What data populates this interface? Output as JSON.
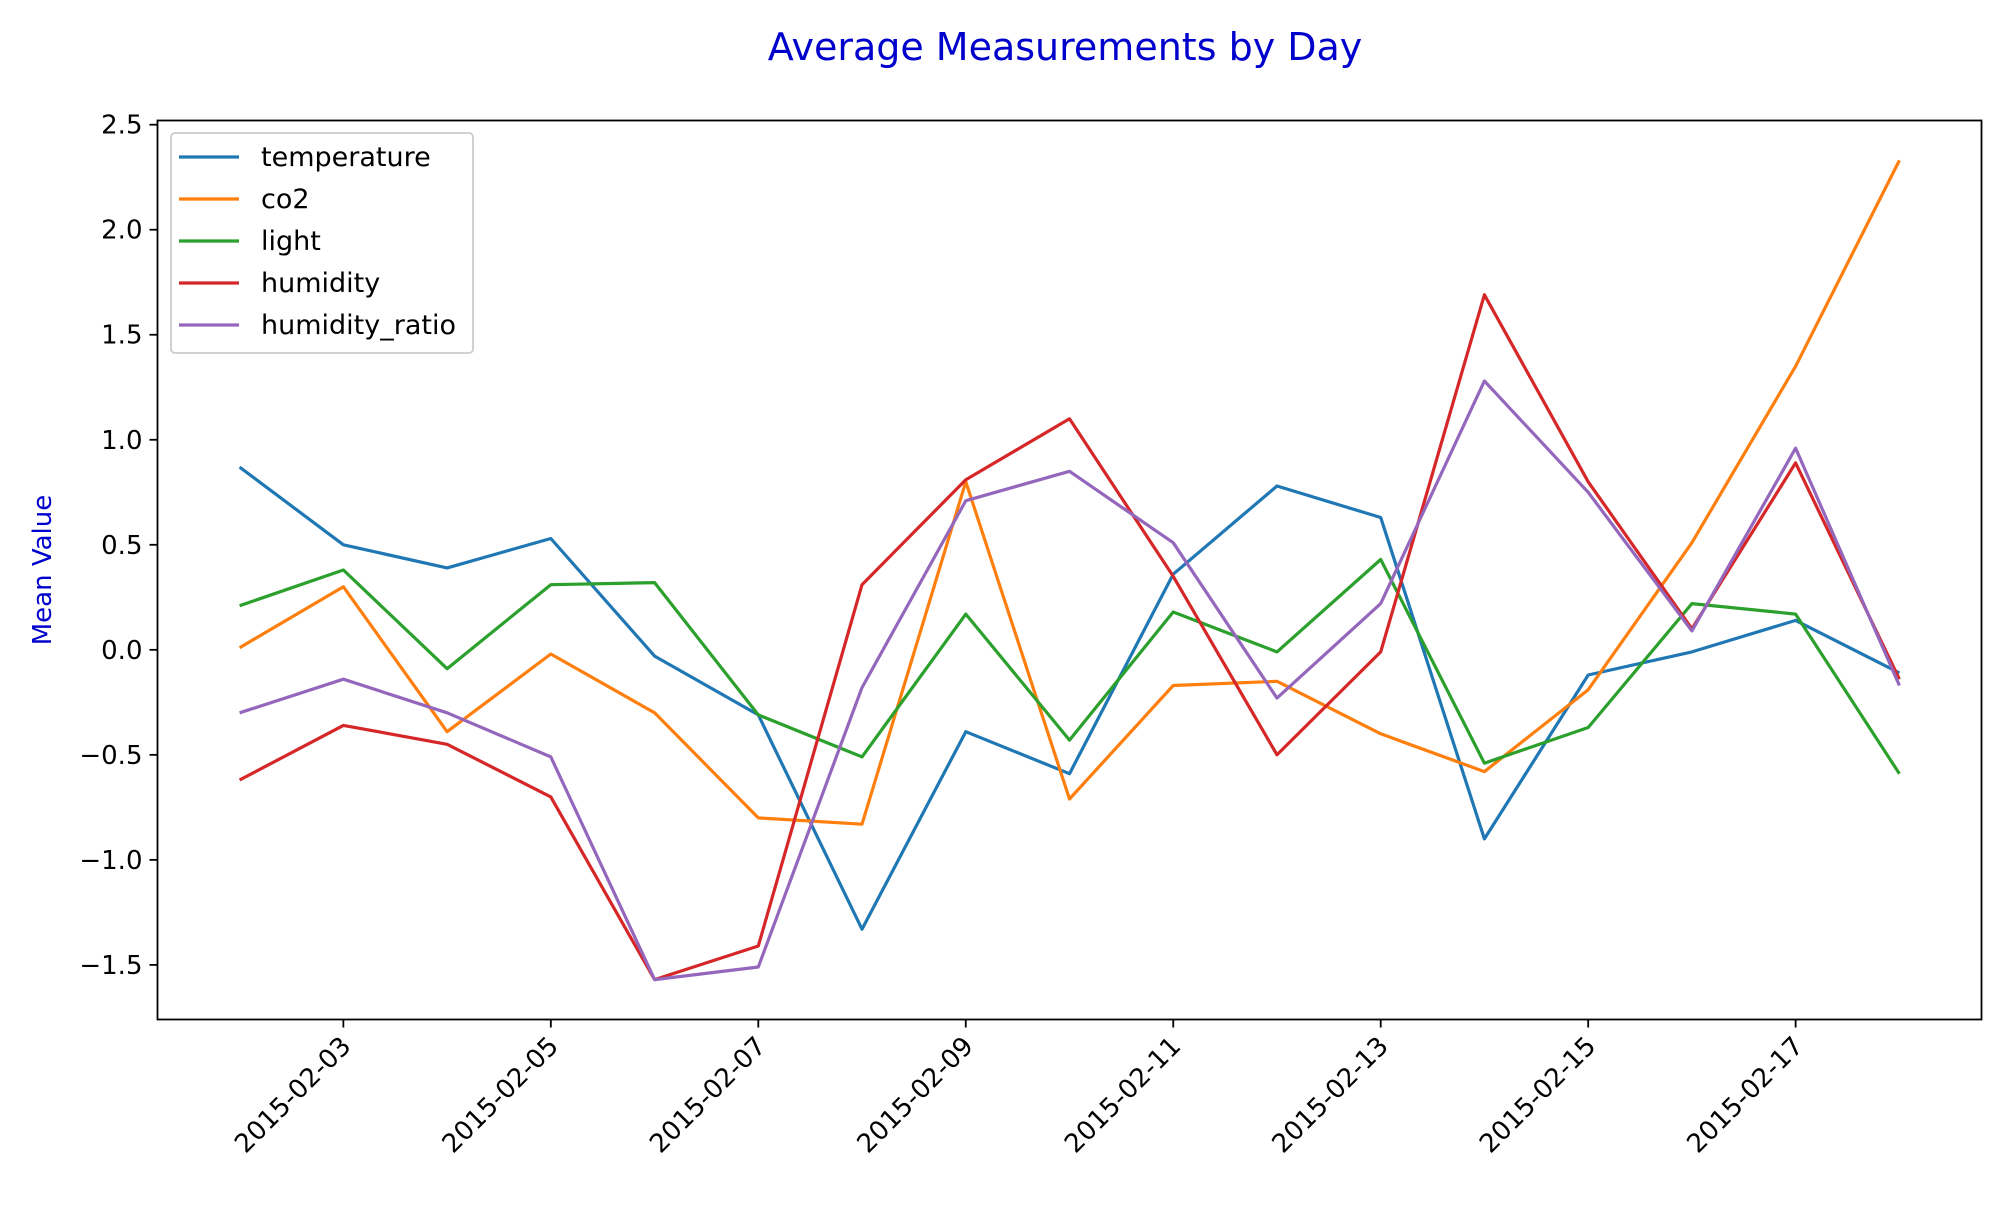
{
  "chart_data": {
    "type": "line",
    "title": "Average Measurements by Day",
    "xlabel": "",
    "ylabel": "Mean Value",
    "title_color": "#0000cc",
    "ylabel_color": "#0000cc",
    "x": [
      "2015-02-02",
      "2015-02-03",
      "2015-02-04",
      "2015-02-05",
      "2015-02-06",
      "2015-02-07",
      "2015-02-08",
      "2015-02-09",
      "2015-02-10",
      "2015-02-11",
      "2015-02-12",
      "2015-02-13",
      "2015-02-14",
      "2015-02-15",
      "2015-02-16",
      "2015-02-17",
      "2015-02-18"
    ],
    "xticks": [
      "2015-02-03",
      "2015-02-05",
      "2015-02-07",
      "2015-02-09",
      "2015-02-11",
      "2015-02-13",
      "2015-02-15",
      "2015-02-17"
    ],
    "xlim": [
      "2015-02-01T05:00",
      "2015-02-18T19:00"
    ],
    "ylim": [
      -1.76,
      2.52
    ],
    "yticks": [
      -1.5,
      -1.0,
      -0.5,
      0.0,
      0.5,
      1.0,
      1.5,
      2.0,
      2.5
    ],
    "ytick_labels": [
      "−1.5",
      "−1.0",
      "−0.5",
      "0.0",
      "0.5",
      "1.0",
      "1.5",
      "2.0",
      "2.5"
    ],
    "grid": false,
    "legend": "top-left",
    "series": [
      {
        "name": "temperature",
        "color": "#1f77b4",
        "values": [
          0.87,
          0.5,
          0.39,
          0.53,
          -0.03,
          -0.31,
          -1.33,
          -0.39,
          -0.59,
          0.36,
          0.78,
          0.63,
          -0.9,
          -0.12,
          -0.01,
          0.14,
          -0.11
        ]
      },
      {
        "name": "co2",
        "color": "#ff7f0e",
        "values": [
          0.01,
          0.3,
          -0.39,
          -0.02,
          -0.3,
          -0.8,
          -0.83,
          0.8,
          -0.71,
          -0.17,
          -0.15,
          -0.4,
          -0.58,
          -0.19,
          0.51,
          1.35,
          2.33
        ]
      },
      {
        "name": "light",
        "color": "#2ca02c",
        "values": [
          0.21,
          0.38,
          -0.09,
          0.31,
          0.32,
          -0.31,
          -0.51,
          0.17,
          -0.43,
          0.18,
          -0.01,
          0.43,
          -0.54,
          -0.37,
          0.22,
          0.17,
          -0.59
        ]
      },
      {
        "name": "humidity",
        "color": "#d62728",
        "values": [
          -0.62,
          -0.36,
          -0.45,
          -0.7,
          -1.57,
          -1.41,
          0.31,
          0.81,
          1.1,
          0.35,
          -0.5,
          -0.01,
          1.69,
          0.8,
          0.1,
          0.89,
          -0.14
        ]
      },
      {
        "name": "humidity_ratio",
        "color": "#9467bd",
        "values": [
          -0.3,
          -0.14,
          -0.3,
          -0.51,
          -1.57,
          -1.51,
          -0.18,
          0.71,
          0.85,
          0.51,
          -0.23,
          0.22,
          1.28,
          0.75,
          0.09,
          0.96,
          -0.17
        ]
      }
    ]
  }
}
